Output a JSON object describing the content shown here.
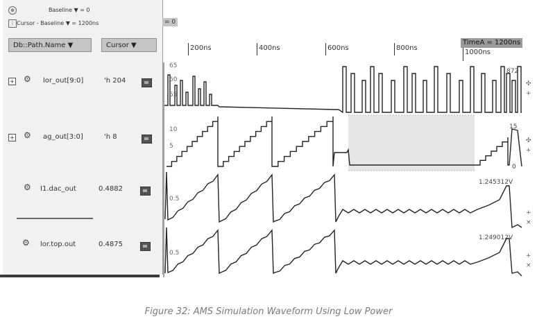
{
  "toolbar": {
    "baseline_text": "Baseline ▼ = 0",
    "cursor_baseline_text": "Cursor - Baseline ▼ = 1200ns",
    "baseline_chip": "= 0"
  },
  "columns": {
    "name_header": "Db::Path.Name ▼",
    "cursor_header": "Cursor ▼"
  },
  "signals": [
    {
      "name": "lor_out[9:0]",
      "value": "'h 204",
      "expandable": true
    },
    {
      "name": "ag_out[3:0]",
      "value": "'h 8",
      "expandable": true
    },
    {
      "name": "I1.dac_out",
      "value": "0.4882",
      "expandable": false
    },
    {
      "name": "lor.top.out",
      "value": "0.4875",
      "expandable": false
    }
  ],
  "timeline": {
    "ticks": [
      "200ns",
      "400ns",
      "600ns",
      "800ns",
      "1000ns"
    ],
    "time_a_badge": "TimeA = 1200ns"
  },
  "waveform_labels": {
    "row1_axis": [
      "65",
      "60",
      "55"
    ],
    "row1_right": "872",
    "row2_axis": [
      "10",
      "5"
    ],
    "row2_right_top": "15",
    "row2_right_bottom": "0",
    "row3_axis": [
      "0.5"
    ],
    "row3_right": "1.245312V",
    "row4_axis": [
      "0.5"
    ],
    "row4_right": "1.249012V"
  },
  "colors": {
    "panel_bg": "#f1f1ef",
    "header_btn": "#c5c5c5",
    "wave_line": "#222222"
  },
  "caption": "Figure 32: AMS Simulation Waveform Using Low Power"
}
